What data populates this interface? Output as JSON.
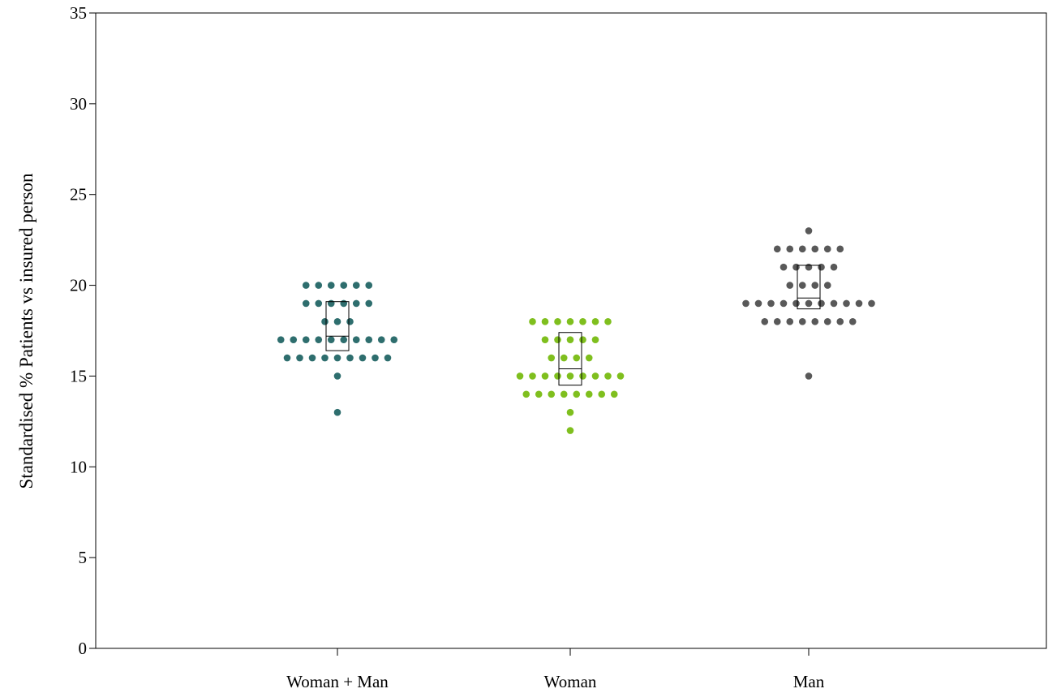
{
  "chart_data": {
    "type": "scatter",
    "subtype": "dot-plot with median and interquartile box",
    "title": "",
    "xlabel": "",
    "ylabel": "Standardised % Patients vs insured person",
    "ylim": [
      0,
      35
    ],
    "yticks": [
      0,
      5,
      10,
      15,
      20,
      25,
      30,
      35
    ],
    "grid": false,
    "categories": [
      "Woman + Man",
      "Woman",
      "Man"
    ],
    "series": [
      {
        "category": "Woman + Man",
        "color": "#2e6e6e",
        "points": [
          {
            "value": 20,
            "count": 6
          },
          {
            "value": 19,
            "count": 6
          },
          {
            "value": 18,
            "count": 3
          },
          {
            "value": 17,
            "count": 10
          },
          {
            "value": 16,
            "count": 9
          },
          {
            "value": 15,
            "count": 1
          },
          {
            "value": 13,
            "count": 1
          }
        ],
        "box": {
          "q1": 16.4,
          "median": 17.2,
          "q3": 19.1
        }
      },
      {
        "category": "Woman",
        "color": "#7fbf1e",
        "points": [
          {
            "value": 18,
            "count": 7
          },
          {
            "value": 17,
            "count": 5
          },
          {
            "value": 16,
            "count": 4
          },
          {
            "value": 15,
            "count": 9
          },
          {
            "value": 14,
            "count": 8
          },
          {
            "value": 13,
            "count": 1
          },
          {
            "value": 12,
            "count": 1
          }
        ],
        "box": {
          "q1": 14.5,
          "median": 15.4,
          "q3": 17.4
        }
      },
      {
        "category": "Man",
        "color": "#595959",
        "points": [
          {
            "value": 23,
            "count": 1
          },
          {
            "value": 22,
            "count": 6
          },
          {
            "value": 21,
            "count": 5
          },
          {
            "value": 20,
            "count": 4
          },
          {
            "value": 19,
            "count": 11
          },
          {
            "value": 18,
            "count": 8
          },
          {
            "value": 15,
            "count": 1
          }
        ],
        "box": {
          "q1": 18.7,
          "median": 19.3,
          "q3": 21.1
        }
      }
    ]
  }
}
